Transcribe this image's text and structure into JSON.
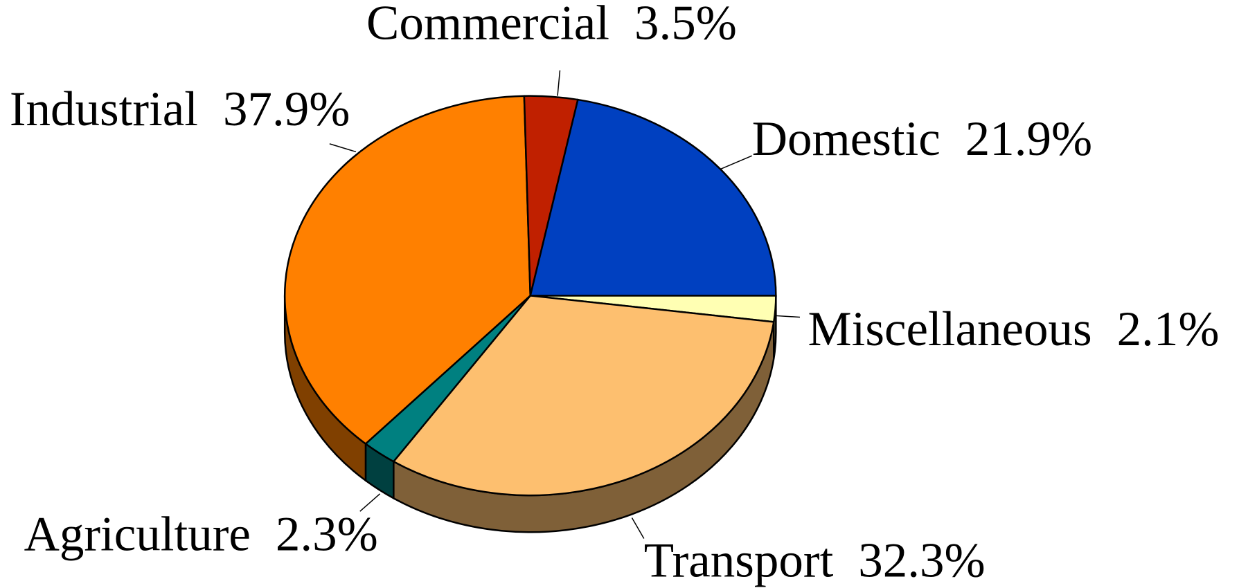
{
  "chart_data": {
    "type": "pie",
    "categories": [
      "Miscellaneous",
      "Transport",
      "Agriculture",
      "Industrial",
      "Commercial",
      "Domestic"
    ],
    "values": [
      2.1,
      32.3,
      2.3,
      37.9,
      3.5,
      21.9
    ],
    "value_labels": [
      "2.1%",
      "32.3%",
      "2.3%",
      "37.9%",
      "3.5%",
      "21.9%"
    ],
    "colors": [
      "#ffffb3",
      "#fdbf6f",
      "#008080",
      "#ff8000",
      "#c02000",
      "#0040c0"
    ]
  }
}
